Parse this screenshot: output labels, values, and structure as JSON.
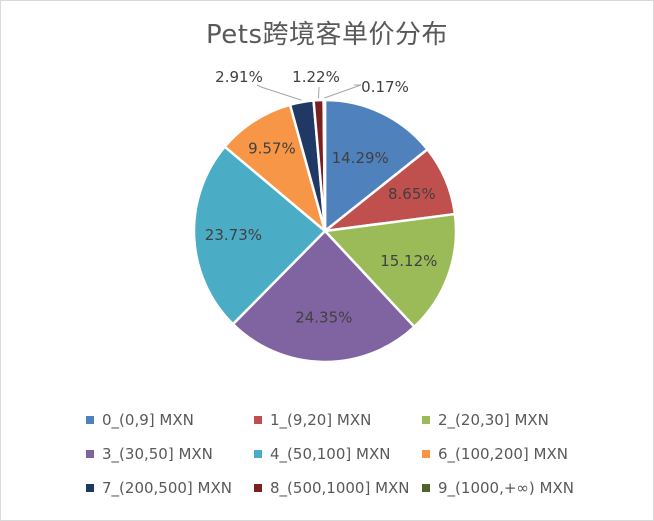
{
  "chart_data": {
    "type": "pie",
    "title": "Pets跨境客单价分布",
    "categories": [
      "0_(0,9] MXN",
      "1_(9,20] MXN",
      "2_(20,30] MXN",
      "3_(30,50] MXN",
      "4_(50,100] MXN",
      "6_(100,200] MXN",
      "7_(200,500] MXN",
      "8_(500,1000] MXN",
      "9_(1000,+∞) MXN"
    ],
    "values": [
      14.29,
      8.65,
      15.12,
      24.35,
      23.73,
      9.57,
      2.91,
      1.22,
      0.17
    ],
    "labels": [
      "14.29%",
      "8.65%",
      "15.12%",
      "24.35%",
      "23.73%",
      "9.57%",
      "2.91%",
      "1.22%",
      "0.17%"
    ],
    "colors": [
      "#4f81bd",
      "#c0504d",
      "#9bbb59",
      "#8064a2",
      "#4bacc6",
      "#f79646",
      "#1f3864",
      "#7b2020",
      "#4f6228"
    ],
    "legend_position": "bottom"
  }
}
